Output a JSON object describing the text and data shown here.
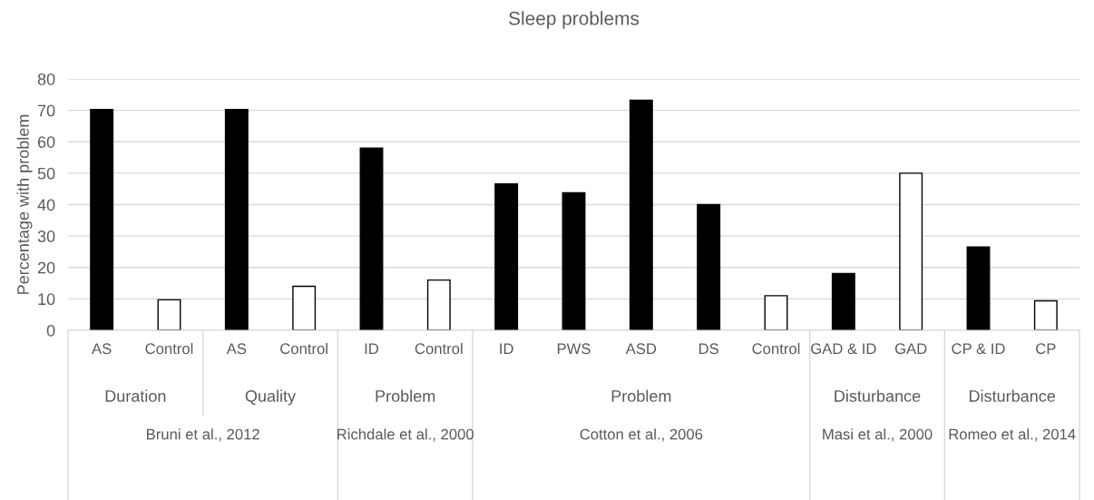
{
  "chart_data": {
    "type": "bar",
    "title": "Sleep problems",
    "ylabel": "Percentage with problem",
    "categories": [
      "AS",
      "Control",
      "AS",
      "Control",
      "ID",
      "Control",
      "ID",
      "PWS",
      "ASD",
      "DS",
      "Control",
      "GAD & ID",
      "GAD",
      "CP & ID",
      "CP"
    ],
    "values": [
      70.3,
      9.7,
      70.3,
      14,
      58,
      16,
      46.6,
      43.8,
      73.2,
      40,
      11,
      18.1,
      50,
      26.5,
      9.4
    ],
    "colors": [
      "#000000",
      "#ffffff",
      "#000000",
      "#ffffff",
      "#000000",
      "#ffffff",
      "#000000",
      "#000000",
      "#000000",
      "#000000",
      "#ffffff",
      "#000000",
      "#ffffff",
      "#000000",
      "#ffffff"
    ],
    "ylim": [
      0,
      80
    ],
    "yticks": [
      0,
      10,
      20,
      30,
      40,
      50,
      60,
      70,
      80
    ],
    "grid": "y",
    "legend": false,
    "annotations": [
      "Duration",
      "Quality",
      "Problem",
      "Problem",
      "Disturbance",
      "Disturbance",
      "Bruni et al., 2012",
      "Richdale et al., 2000",
      "Cotton et al., 2006",
      "Masi et al., 2000",
      "Romeo et al., 2014"
    ]
  }
}
